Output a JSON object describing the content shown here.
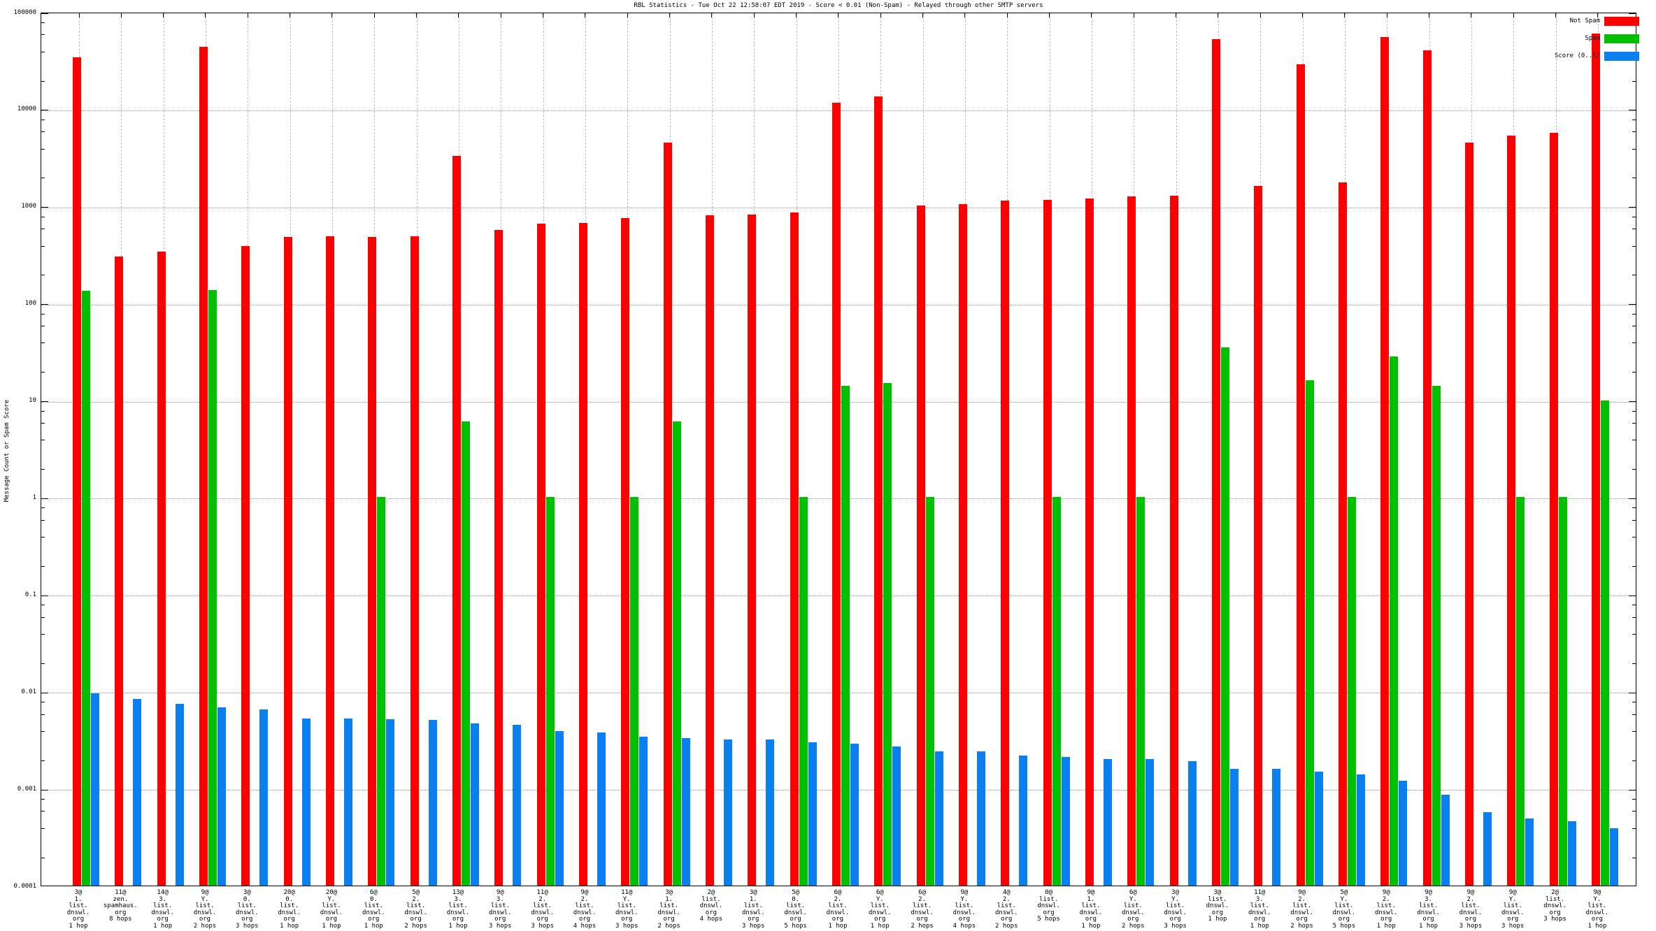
{
  "title": "RBL Statistics - Tue Oct 22 12:58:07 EDT 2019 - Score < 0.01 (Non-Spam) - Relayed through other SMTP servers",
  "y_axis_label": "Message Count or Spam Score",
  "legend": [
    {
      "label": "Not Spam",
      "color": "#ff0000"
    },
    {
      "label": "Spam",
      "color": "#00c000"
    },
    {
      "label": "Score (0..1)",
      "color": "#0a80f0"
    }
  ],
  "chart_data": {
    "type": "bar",
    "log_y": true,
    "ylim": [
      0.0001,
      100000
    ],
    "ytick_labels": [
      "100000",
      "10000",
      "1000",
      "100",
      "10",
      "1",
      "0.1",
      "0.01",
      "0.001",
      "0.0001"
    ],
    "grid": "on",
    "legend_position": "top-right",
    "series_names": [
      "Not Spam",
      "Spam",
      "Score (0..1)"
    ],
    "groups": [
      {
        "label_lines": [
          "3@",
          "1.",
          "list.",
          "dnswl.",
          "org",
          "1 hop"
        ],
        "not_spam": 34000,
        "spam": 135,
        "score": 0.0095
      },
      {
        "label_lines": [
          "11@",
          "zen.",
          "spamhaus.",
          "org",
          "8 hops"
        ],
        "not_spam": 300,
        "spam": null,
        "score": 0.0083
      },
      {
        "label_lines": [
          "14@",
          "3.",
          "list.",
          "dnswl.",
          "org",
          "1 hop"
        ],
        "not_spam": 340,
        "spam": null,
        "score": 0.0075
      },
      {
        "label_lines": [
          "9@",
          "Y.",
          "list.",
          "dnswl.",
          "org",
          "2 hops"
        ],
        "not_spam": 44000,
        "spam": 136,
        "score": 0.0069
      },
      {
        "label_lines": [
          "3@",
          "0.",
          "list.",
          "dnswl.",
          "org",
          "3 hops"
        ],
        "not_spam": 390,
        "spam": null,
        "score": 0.0065
      },
      {
        "label_lines": [
          "20@",
          "0.",
          "list.",
          "dnswl.",
          "org",
          "1 hop"
        ],
        "not_spam": 480,
        "spam": null,
        "score": 0.0053
      },
      {
        "label_lines": [
          "20@",
          "Y.",
          "list.",
          "dnswl.",
          "org",
          "1 hop"
        ],
        "not_spam": 485,
        "spam": null,
        "score": 0.0053
      },
      {
        "label_lines": [
          "6@",
          "0.",
          "list.",
          "dnswl.",
          "org",
          "1 hop"
        ],
        "not_spam": 483,
        "spam": 1,
        "score": 0.0052
      },
      {
        "label_lines": [
          "5@",
          "2.",
          "list.",
          "dnswl.",
          "org",
          "2 hops"
        ],
        "not_spam": 490,
        "spam": null,
        "score": 0.0051
      },
      {
        "label_lines": [
          "13@",
          "3.",
          "list.",
          "dnswl.",
          "org",
          "1 hop"
        ],
        "not_spam": 3300,
        "spam": 6,
        "score": 0.0047
      },
      {
        "label_lines": [
          "9@",
          "3.",
          "list.",
          "dnswl.",
          "org",
          "3 hops"
        ],
        "not_spam": 565,
        "spam": null,
        "score": 0.0045
      },
      {
        "label_lines": [
          "11@",
          "2.",
          "list.",
          "dnswl.",
          "org",
          "3 hops"
        ],
        "not_spam": 660,
        "spam": 1,
        "score": 0.0039
      },
      {
        "label_lines": [
          "9@",
          "2.",
          "list.",
          "dnswl.",
          "org",
          "4 hops"
        ],
        "not_spam": 665,
        "spam": null,
        "score": 0.0038
      },
      {
        "label_lines": [
          "11@",
          "Y.",
          "list.",
          "dnswl.",
          "org",
          "3 hops"
        ],
        "not_spam": 750,
        "spam": 1,
        "score": 0.0034
      },
      {
        "label_lines": [
          "3@",
          "1.",
          "list.",
          "dnswl.",
          "org",
          "2 hops"
        ],
        "not_spam": 4500,
        "spam": 6,
        "score": 0.0033
      },
      {
        "label_lines": [
          "2@",
          "list.",
          "dnswl.",
          "org",
          "4 hops"
        ],
        "not_spam": 810,
        "spam": null,
        "score": 0.0032
      },
      {
        "label_lines": [
          "3@",
          "1.",
          "list.",
          "dnswl.",
          "org",
          "3 hops"
        ],
        "not_spam": 820,
        "spam": null,
        "score": 0.0032
      },
      {
        "label_lines": [
          "5@",
          "0.",
          "list.",
          "dnswl.",
          "org",
          "5 hops"
        ],
        "not_spam": 865,
        "spam": 1,
        "score": 0.003
      },
      {
        "label_lines": [
          "6@",
          "2.",
          "list.",
          "dnswl.",
          "org",
          "1 hop"
        ],
        "not_spam": 11500,
        "spam": 14,
        "score": 0.0029
      },
      {
        "label_lines": [
          "6@",
          "Y.",
          "list.",
          "dnswl.",
          "org",
          "1 hop"
        ],
        "not_spam": 13500,
        "spam": 15,
        "score": 0.0027
      },
      {
        "label_lines": [
          "6@",
          "2.",
          "list.",
          "dnswl.",
          "org",
          "2 hops"
        ],
        "not_spam": 1020,
        "spam": 1,
        "score": 0.0024
      },
      {
        "label_lines": [
          "9@",
          "Y.",
          "list.",
          "dnswl.",
          "org",
          "4 hops"
        ],
        "not_spam": 1050,
        "spam": null,
        "score": 0.0024
      },
      {
        "label_lines": [
          "4@",
          "2.",
          "list.",
          "dnswl.",
          "org",
          "2 hops"
        ],
        "not_spam": 1130,
        "spam": null,
        "score": 0.0022
      },
      {
        "label_lines": [
          "0@",
          "list.",
          "dnswl.",
          "org",
          "5 hops"
        ],
        "not_spam": 1150,
        "spam": 1,
        "score": 0.0021
      },
      {
        "label_lines": [
          "9@",
          "1.",
          "list.",
          "dnswl.",
          "org",
          "1 hop"
        ],
        "not_spam": 1200,
        "spam": null,
        "score": 0.002
      },
      {
        "label_lines": [
          "6@",
          "Y.",
          "list.",
          "dnswl.",
          "org",
          "2 hops"
        ],
        "not_spam": 1250,
        "spam": 1,
        "score": 0.002
      },
      {
        "label_lines": [
          "3@",
          "Y.",
          "list.",
          "dnswl.",
          "org",
          "3 hops"
        ],
        "not_spam": 1280,
        "spam": null,
        "score": 0.0019
      },
      {
        "label_lines": [
          "3@",
          "list.",
          "dnswl.",
          "org",
          "1 hop"
        ],
        "not_spam": 52000,
        "spam": 35,
        "score": 0.0016
      },
      {
        "label_lines": [
          "11@",
          "3.",
          "list.",
          "dnswl.",
          "org",
          "1 hop"
        ],
        "not_spam": 1600,
        "spam": null,
        "score": 0.0016
      },
      {
        "label_lines": [
          "9@",
          "2.",
          "list.",
          "dnswl.",
          "org",
          "2 hops"
        ],
        "not_spam": 29000,
        "spam": 16,
        "score": 0.0015
      },
      {
        "label_lines": [
          "5@",
          "Y.",
          "list.",
          "dnswl.",
          "org",
          "5 hops"
        ],
        "not_spam": 1750,
        "spam": 1,
        "score": 0.0014
      },
      {
        "label_lines": [
          "9@",
          "2.",
          "list.",
          "dnswl.",
          "org",
          "1 hop"
        ],
        "not_spam": 55000,
        "spam": 28,
        "score": 0.0012
      },
      {
        "label_lines": [
          "9@",
          "3.",
          "list.",
          "dnswl.",
          "org",
          "1 hop"
        ],
        "not_spam": 40000,
        "spam": 14,
        "score": 0.00087
      },
      {
        "label_lines": [
          "9@",
          "2.",
          "list.",
          "dnswl.",
          "org",
          "3 hops"
        ],
        "not_spam": 4500,
        "spam": null,
        "score": 0.00057
      },
      {
        "label_lines": [
          "9@",
          "Y.",
          "list.",
          "dnswl.",
          "org",
          "3 hops"
        ],
        "not_spam": 5300,
        "spam": 1,
        "score": 0.00049
      },
      {
        "label_lines": [
          "2@",
          "list.",
          "dnswl.",
          "org",
          "3 hops"
        ],
        "not_spam": 5700,
        "spam": 1,
        "score": 0.00046
      },
      {
        "label_lines": [
          "9@",
          "Y.",
          "list.",
          "dnswl.",
          "org",
          "1 hop"
        ],
        "not_spam": 60000,
        "spam": 10,
        "score": 0.00039
      }
    ]
  }
}
